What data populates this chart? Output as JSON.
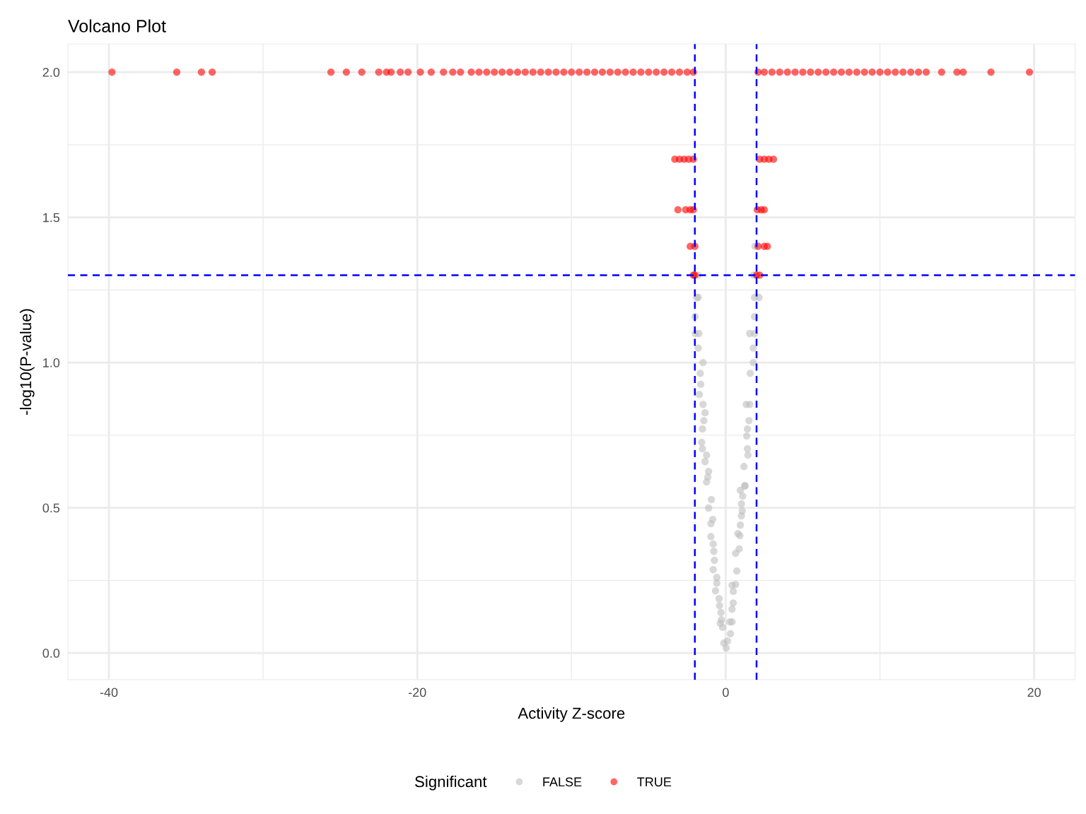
{
  "chart_data": {
    "type": "scatter",
    "title": "Volcano Plot",
    "xlabel": "Activity Z-score",
    "ylabel": "-log10(P-value)",
    "legend_title": "Significant",
    "xlim": [
      -42.66,
      22.66
    ],
    "ylim": [
      -0.092,
      2.097
    ],
    "xticks": [
      -40,
      {
        "value": -30,
        "label": null
      },
      -20,
      {
        "value": -10,
        "label": null
      },
      0,
      {
        "value": 10,
        "label": null
      },
      20
    ],
    "yticks": [
      {
        "value": 0,
        "label": "0.0"
      },
      {
        "value": 0.25,
        "label": null
      },
      {
        "value": 0.5,
        "label": "0.5"
      },
      {
        "value": 0.75,
        "label": null
      },
      {
        "value": 1,
        "label": "1.0"
      },
      {
        "value": 1.25,
        "label": null
      },
      {
        "value": 1.5,
        "label": "1.5"
      },
      {
        "value": 1.75,
        "label": null
      },
      {
        "value": 2,
        "label": "2.0"
      }
    ],
    "grid": true,
    "legend": "bottom",
    "marker": "circle",
    "ref_lines": [
      {
        "axis": "x",
        "value": -2,
        "color": "#0000ff",
        "line_style": "dashed"
      },
      {
        "axis": "x",
        "value": 2,
        "color": "#0000ff",
        "line_style": "dashed"
      },
      {
        "axis": "y",
        "value": 1.301,
        "color": "#0000ff",
        "line_style": "dashed"
      }
    ],
    "series": [
      {
        "name": "FALSE",
        "color": "#bebebe",
        "x": [
          -1.88,
          -1.78,
          -1.99,
          -1.97,
          -1.74,
          -1.78,
          -1.47,
          -1.65,
          -1.62,
          -1.71,
          -1.47,
          -1.34,
          -1.42,
          -1.51,
          -1.56,
          -1.51,
          -1.24,
          -1.34,
          -1.11,
          -1.16,
          -1.24,
          -0.93,
          -1.11,
          -0.84,
          -0.96,
          -0.96,
          -0.81,
          -0.77,
          -0.73,
          -0.81,
          -0.58,
          -0.58,
          -0.66,
          -0.43,
          -0.4,
          -0.31,
          -0.28,
          -0.35,
          -0.2,
          -0.12,
          0.03,
          0.11,
          0.31,
          -1.8,
          1.8,
          1.9,
          1.87,
          2.16,
          1.87,
          1.56,
          1.87,
          1.79,
          1.79,
          1.59,
          1.56,
          1.33,
          1.51,
          1.41,
          1.36,
          1.41,
          1.44,
          1.18,
          1.24,
          0.95,
          1.25,
          1.1,
          1.02,
          1.07,
          1.02,
          0.95,
          0.79,
          0.92,
          0.87,
          0.64,
          0.72,
          0.64,
          0.41,
          0.49,
          0.49,
          0.41,
          0.41,
          0.26
        ],
        "values": [
          1.224,
          1.224,
          1.158,
          1.1,
          1.1,
          1.05,
          1.0,
          0.963,
          0.925,
          0.89,
          0.856,
          0.827,
          0.8,
          0.771,
          0.725,
          0.703,
          0.681,
          0.659,
          0.625,
          0.606,
          0.589,
          0.528,
          0.499,
          0.46,
          0.445,
          0.401,
          0.375,
          0.35,
          0.319,
          0.287,
          0.26,
          0.24,
          0.214,
          0.187,
          0.163,
          0.139,
          0.114,
          0.102,
          0.088,
          0.034,
          0.017,
          0.041,
          0.066,
          1.301,
          1.301,
          1.4,
          1.224,
          1.224,
          1.158,
          1.1,
          1.1,
          1.05,
          1.0,
          0.963,
          0.856,
          0.856,
          0.8,
          0.771,
          0.747,
          0.703,
          0.681,
          0.642,
          0.577,
          0.56,
          0.574,
          0.54,
          0.513,
          0.489,
          0.472,
          0.44,
          0.411,
          0.404,
          0.358,
          0.343,
          0.282,
          0.236,
          0.233,
          0.212,
          0.172,
          0.151,
          0.107,
          0.107
        ]
      },
      {
        "name": "TRUE",
        "color": "#ff0000",
        "x": [
          -39.8,
          -35.6,
          -34.0,
          -33.3,
          -25.6,
          -24.6,
          -23.6,
          -22.5,
          -22.0,
          -21.7,
          -21.1,
          -20.6,
          -19.8,
          -19.1,
          -18.3,
          -17.7,
          -17.2,
          -16.5,
          -16.0,
          -15.5,
          -15.0,
          -14.5,
          -14.0,
          -13.5,
          -13.0,
          -12.5,
          -12.0,
          -11.5,
          -11.0,
          -10.5,
          -10.0,
          -9.5,
          -9.0,
          -8.5,
          -8.0,
          -7.5,
          -7.0,
          -6.5,
          -6.0,
          -5.5,
          -5.0,
          -4.5,
          -4.0,
          -3.5,
          -3.0,
          -2.5,
          -2.1,
          2.1,
          2.5,
          3.0,
          3.5,
          4.0,
          4.5,
          5.0,
          5.5,
          6.0,
          6.5,
          7.0,
          7.5,
          8.0,
          8.5,
          9.0,
          9.5,
          10.0,
          10.5,
          11.0,
          11.5,
          12.0,
          12.5,
          13.0,
          14.0,
          15.0,
          15.4,
          17.2,
          19.7,
          -3.3,
          -3.0,
          -2.7,
          -2.4,
          -2.1,
          2.2,
          2.5,
          2.8,
          3.1,
          -3.1,
          -2.6,
          -2.3,
          -2.1,
          2.05,
          2.3,
          2.5,
          -2.3,
          -2.0,
          2.1,
          2.5,
          2.7,
          -2.1,
          -2.0,
          2.0,
          2.2
        ],
        "values": [
          2,
          2,
          2,
          2,
          2,
          2,
          2,
          2,
          2,
          2,
          2,
          2,
          2,
          2,
          2,
          2,
          2,
          2,
          2,
          2,
          2,
          2,
          2,
          2,
          2,
          2,
          2,
          2,
          2,
          2,
          2,
          2,
          2,
          2,
          2,
          2,
          2,
          2,
          2,
          2,
          2,
          2,
          2,
          2,
          2,
          2,
          2,
          2,
          2,
          2,
          2,
          2,
          2,
          2,
          2,
          2,
          2,
          2,
          2,
          2,
          2,
          2,
          2,
          2,
          2,
          2,
          2,
          2,
          2,
          2,
          2,
          2,
          2,
          2,
          2,
          1.7,
          1.7,
          1.7,
          1.7,
          1.7,
          1.7,
          1.7,
          1.7,
          1.7,
          1.526,
          1.526,
          1.526,
          1.526,
          1.526,
          1.526,
          1.526,
          1.4,
          1.4,
          1.4,
          1.4,
          1.4,
          1.301,
          1.301,
          1.301,
          1.301
        ]
      }
    ]
  }
}
